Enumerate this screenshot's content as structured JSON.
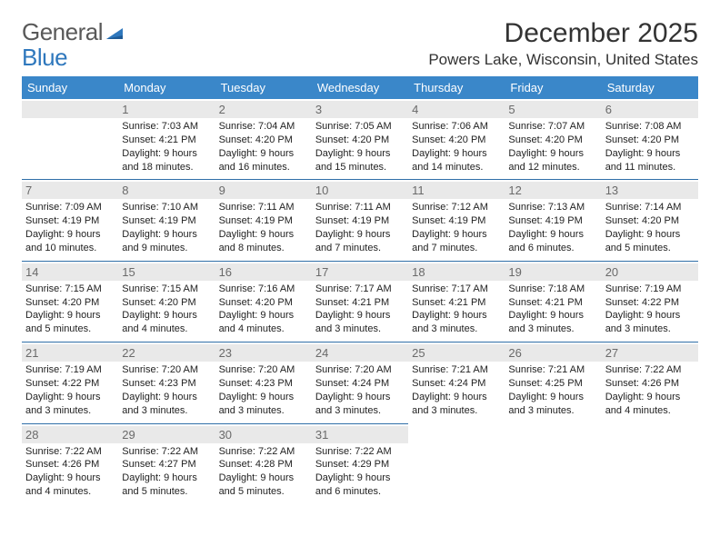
{
  "logo": {
    "part1": "General",
    "part2": "Blue"
  },
  "title": "December 2025",
  "location": "Powers Lake, Wisconsin, United States",
  "colors": {
    "header_bg": "#3a87c9",
    "header_text": "#ffffff",
    "cell_border": "#2f6fa8",
    "daynum_bg": "#e9e9e9",
    "daynum_text": "#6a6a6a",
    "body_text": "#222222",
    "title_text": "#333333",
    "logo_gray": "#595959",
    "logo_blue": "#2f78bd"
  },
  "weekdays": [
    "Sunday",
    "Monday",
    "Tuesday",
    "Wednesday",
    "Thursday",
    "Friday",
    "Saturday"
  ],
  "weeks": [
    [
      null,
      {
        "n": "1",
        "sr": "Sunrise: 7:03 AM",
        "ss": "Sunset: 4:21 PM",
        "dl": "Daylight: 9 hours and 18 minutes."
      },
      {
        "n": "2",
        "sr": "Sunrise: 7:04 AM",
        "ss": "Sunset: 4:20 PM",
        "dl": "Daylight: 9 hours and 16 minutes."
      },
      {
        "n": "3",
        "sr": "Sunrise: 7:05 AM",
        "ss": "Sunset: 4:20 PM",
        "dl": "Daylight: 9 hours and 15 minutes."
      },
      {
        "n": "4",
        "sr": "Sunrise: 7:06 AM",
        "ss": "Sunset: 4:20 PM",
        "dl": "Daylight: 9 hours and 14 minutes."
      },
      {
        "n": "5",
        "sr": "Sunrise: 7:07 AM",
        "ss": "Sunset: 4:20 PM",
        "dl": "Daylight: 9 hours and 12 minutes."
      },
      {
        "n": "6",
        "sr": "Sunrise: 7:08 AM",
        "ss": "Sunset: 4:20 PM",
        "dl": "Daylight: 9 hours and 11 minutes."
      }
    ],
    [
      {
        "n": "7",
        "sr": "Sunrise: 7:09 AM",
        "ss": "Sunset: 4:19 PM",
        "dl": "Daylight: 9 hours and 10 minutes."
      },
      {
        "n": "8",
        "sr": "Sunrise: 7:10 AM",
        "ss": "Sunset: 4:19 PM",
        "dl": "Daylight: 9 hours and 9 minutes."
      },
      {
        "n": "9",
        "sr": "Sunrise: 7:11 AM",
        "ss": "Sunset: 4:19 PM",
        "dl": "Daylight: 9 hours and 8 minutes."
      },
      {
        "n": "10",
        "sr": "Sunrise: 7:11 AM",
        "ss": "Sunset: 4:19 PM",
        "dl": "Daylight: 9 hours and 7 minutes."
      },
      {
        "n": "11",
        "sr": "Sunrise: 7:12 AM",
        "ss": "Sunset: 4:19 PM",
        "dl": "Daylight: 9 hours and 7 minutes."
      },
      {
        "n": "12",
        "sr": "Sunrise: 7:13 AM",
        "ss": "Sunset: 4:19 PM",
        "dl": "Daylight: 9 hours and 6 minutes."
      },
      {
        "n": "13",
        "sr": "Sunrise: 7:14 AM",
        "ss": "Sunset: 4:20 PM",
        "dl": "Daylight: 9 hours and 5 minutes."
      }
    ],
    [
      {
        "n": "14",
        "sr": "Sunrise: 7:15 AM",
        "ss": "Sunset: 4:20 PM",
        "dl": "Daylight: 9 hours and 5 minutes."
      },
      {
        "n": "15",
        "sr": "Sunrise: 7:15 AM",
        "ss": "Sunset: 4:20 PM",
        "dl": "Daylight: 9 hours and 4 minutes."
      },
      {
        "n": "16",
        "sr": "Sunrise: 7:16 AM",
        "ss": "Sunset: 4:20 PM",
        "dl": "Daylight: 9 hours and 4 minutes."
      },
      {
        "n": "17",
        "sr": "Sunrise: 7:17 AM",
        "ss": "Sunset: 4:21 PM",
        "dl": "Daylight: 9 hours and 3 minutes."
      },
      {
        "n": "18",
        "sr": "Sunrise: 7:17 AM",
        "ss": "Sunset: 4:21 PM",
        "dl": "Daylight: 9 hours and 3 minutes."
      },
      {
        "n": "19",
        "sr": "Sunrise: 7:18 AM",
        "ss": "Sunset: 4:21 PM",
        "dl": "Daylight: 9 hours and 3 minutes."
      },
      {
        "n": "20",
        "sr": "Sunrise: 7:19 AM",
        "ss": "Sunset: 4:22 PM",
        "dl": "Daylight: 9 hours and 3 minutes."
      }
    ],
    [
      {
        "n": "21",
        "sr": "Sunrise: 7:19 AM",
        "ss": "Sunset: 4:22 PM",
        "dl": "Daylight: 9 hours and 3 minutes."
      },
      {
        "n": "22",
        "sr": "Sunrise: 7:20 AM",
        "ss": "Sunset: 4:23 PM",
        "dl": "Daylight: 9 hours and 3 minutes."
      },
      {
        "n": "23",
        "sr": "Sunrise: 7:20 AM",
        "ss": "Sunset: 4:23 PM",
        "dl": "Daylight: 9 hours and 3 minutes."
      },
      {
        "n": "24",
        "sr": "Sunrise: 7:20 AM",
        "ss": "Sunset: 4:24 PM",
        "dl": "Daylight: 9 hours and 3 minutes."
      },
      {
        "n": "25",
        "sr": "Sunrise: 7:21 AM",
        "ss": "Sunset: 4:24 PM",
        "dl": "Daylight: 9 hours and 3 minutes."
      },
      {
        "n": "26",
        "sr": "Sunrise: 7:21 AM",
        "ss": "Sunset: 4:25 PM",
        "dl": "Daylight: 9 hours and 3 minutes."
      },
      {
        "n": "27",
        "sr": "Sunrise: 7:22 AM",
        "ss": "Sunset: 4:26 PM",
        "dl": "Daylight: 9 hours and 4 minutes."
      }
    ],
    [
      {
        "n": "28",
        "sr": "Sunrise: 7:22 AM",
        "ss": "Sunset: 4:26 PM",
        "dl": "Daylight: 9 hours and 4 minutes."
      },
      {
        "n": "29",
        "sr": "Sunrise: 7:22 AM",
        "ss": "Sunset: 4:27 PM",
        "dl": "Daylight: 9 hours and 5 minutes."
      },
      {
        "n": "30",
        "sr": "Sunrise: 7:22 AM",
        "ss": "Sunset: 4:28 PM",
        "dl": "Daylight: 9 hours and 5 minutes."
      },
      {
        "n": "31",
        "sr": "Sunrise: 7:22 AM",
        "ss": "Sunset: 4:29 PM",
        "dl": "Daylight: 9 hours and 6 minutes."
      },
      null,
      null,
      null
    ]
  ]
}
